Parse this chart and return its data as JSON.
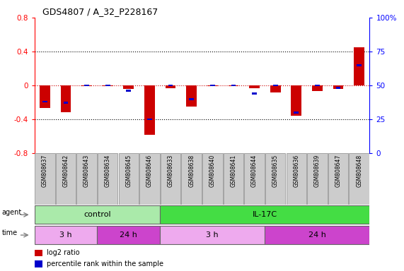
{
  "title": "GDS4807 / A_32_P228167",
  "samples": [
    "GSM808637",
    "GSM808642",
    "GSM808643",
    "GSM808634",
    "GSM808645",
    "GSM808646",
    "GSM808633",
    "GSM808638",
    "GSM808640",
    "GSM808641",
    "GSM808644",
    "GSM808635",
    "GSM808636",
    "GSM808639",
    "GSM808647",
    "GSM808648"
  ],
  "log2_ratio": [
    -0.27,
    -0.32,
    -0.01,
    -0.01,
    -0.04,
    -0.58,
    -0.03,
    -0.25,
    -0.01,
    -0.01,
    -0.03,
    -0.08,
    -0.36,
    -0.07,
    -0.04,
    0.45
  ],
  "percentile": [
    38,
    37,
    50,
    50,
    46,
    25,
    50,
    40,
    50,
    50,
    44,
    50,
    30,
    50,
    48,
    65
  ],
  "ylim_left": [
    -0.8,
    0.8
  ],
  "ylim_right": [
    0,
    100
  ],
  "yticks_left": [
    -0.8,
    -0.4,
    0.0,
    0.4,
    0.8
  ],
  "yticks_right": [
    0,
    25,
    50,
    75,
    100
  ],
  "ytick_labels_right": [
    "0",
    "25",
    "50",
    "75",
    "100%"
  ],
  "bar_color_red": "#cc0000",
  "bar_color_blue": "#0000cc",
  "zero_line_color": "#cc0000",
  "dotted_line_color": "#000000",
  "background_plot": "#ffffff",
  "agent_groups": [
    {
      "label": "control",
      "start": 0,
      "end": 6,
      "color": "#aaeaaa"
    },
    {
      "label": "IL-17C",
      "start": 6,
      "end": 16,
      "color": "#44dd44"
    }
  ],
  "time_groups": [
    {
      "label": "3 h",
      "start": 0,
      "end": 3,
      "color": "#eeaaee"
    },
    {
      "label": "24 h",
      "start": 3,
      "end": 6,
      "color": "#cc44cc"
    },
    {
      "label": "3 h",
      "start": 6,
      "end": 11,
      "color": "#eeaaee"
    },
    {
      "label": "24 h",
      "start": 11,
      "end": 16,
      "color": "#cc44cc"
    }
  ],
  "legend_red_label": "log2 ratio",
  "legend_blue_label": "percentile rank within the sample",
  "agent_label": "agent",
  "time_label": "time",
  "sample_box_color": "#cccccc",
  "sample_box_edge": "#888888"
}
